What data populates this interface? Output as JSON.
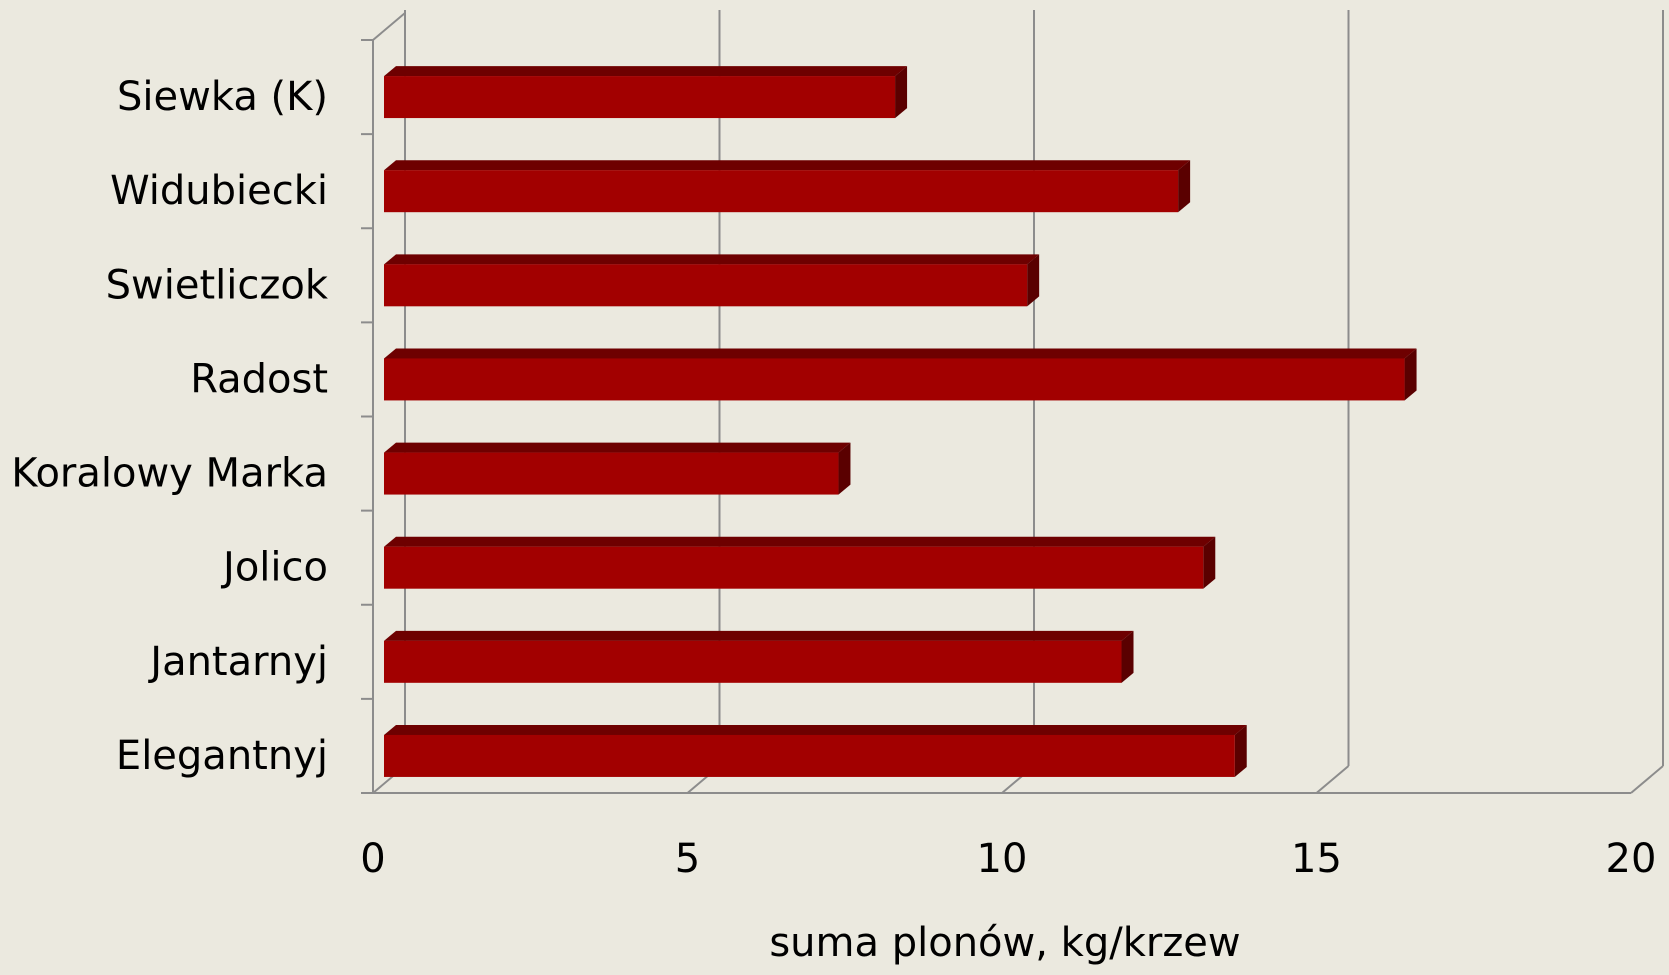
{
  "chart_data": {
    "type": "bar",
    "orientation": "horizontal",
    "categories": [
      "Siewka (K)",
      "Widubiecki",
      "Swietliczok",
      "Radost",
      "Koralowy Marka",
      "Jolico",
      "Jantarnyj",
      "Elegantnyj"
    ],
    "values": [
      8.3,
      12.8,
      10.4,
      16.4,
      7.4,
      13.2,
      11.9,
      13.7
    ],
    "xlabel": "suma plonów, kg/krzew",
    "ylabel": "",
    "xlim": [
      0,
      20
    ],
    "xticks": [
      0,
      5,
      10,
      15,
      20
    ],
    "xtick_labels": [
      "0",
      "5",
      "10",
      "15",
      "20"
    ],
    "grid": "vertical",
    "legend": "none",
    "style": "3d",
    "colors": {
      "bar_front": "#a20000",
      "bar_top": "#6e0000",
      "bar_side": "#5a0000",
      "background": "#ebe9df",
      "grid": "#8c8c8c",
      "axis": "#8c8c8c"
    }
  }
}
